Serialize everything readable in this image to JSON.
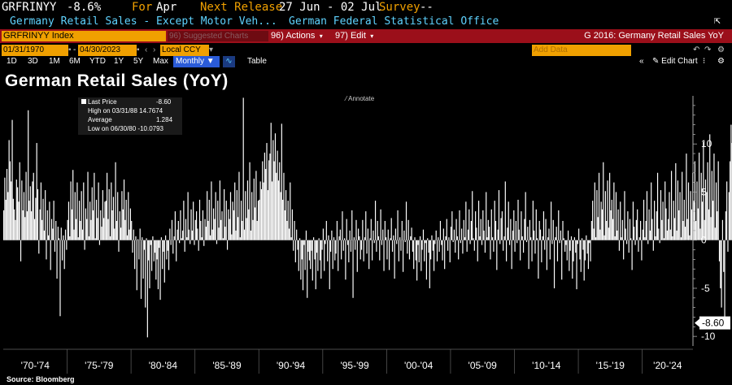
{
  "header": {
    "ticker": "GRFRINYY",
    "last_value": "-8.6%",
    "for_label": "For",
    "for_month": "Apr",
    "next_release_label": "Next Release",
    "next_release": "27 Jun - 02 Jul",
    "survey_label": "Survey",
    "survey_value": "--",
    "description": "Germany Retail Sales - Except Motor Veh...",
    "source_org": "German Federal Statistical Office"
  },
  "toolbar": {
    "security": "GRFRINYY Index",
    "suggested_charts": "96) Suggested Charts",
    "actions": "96) Actions",
    "edit": "97) Edit",
    "chart_name": "G 2016: Germany Retail Sales YoY"
  },
  "controls": {
    "start_date": "01/31/1970",
    "end_date": "04/30/2023",
    "currency": "Local CCY",
    "add_data_placeholder": "Add Data",
    "periods": [
      "1D",
      "3D",
      "1M",
      "6M",
      "YTD",
      "1Y",
      "5Y",
      "Max"
    ],
    "frequency": "Monthly",
    "table_label": "Table",
    "edit_chart": "Edit Chart"
  },
  "legend": {
    "last_price_label": "Last Price",
    "last_price": "-8.60",
    "high_label": "High on 03/31/88",
    "high": "14.7674",
    "average_label": "Average",
    "average": "1.284",
    "low_label": "Low on 06/30/80",
    "low": "-10.0793"
  },
  "annotate_label": "Annotate",
  "source": "Source: Bloomberg",
  "colors": {
    "bars": "#ffffff",
    "header_red": "#9b0f1a",
    "accent_orange": "#f0a000",
    "accent_cyan": "#5fd3ff"
  },
  "chart_data": {
    "type": "bar",
    "title": "German Retail Sales (YoY)",
    "ylim": [
      -11,
      15
    ],
    "yticks": [
      10,
      5,
      0,
      -5,
      -10
    ],
    "xtick_labels": [
      "'70-'74",
      "'75-'79",
      "'80-'84",
      "'85-'89",
      "'90-'94",
      "'95-'99",
      "'00-'04",
      "'05-'09",
      "'10-'14",
      "'15-'19",
      "'20-'24"
    ],
    "last_value_label": "-8.60",
    "x_start": "1970-01",
    "x_end": "2023-04",
    "frequency": "monthly",
    "values": [
      3.1,
      6.5,
      4.2,
      7.4,
      5.0,
      10.4,
      8.2,
      6.1,
      12.5,
      4.3,
      3.2,
      2.1,
      6.3,
      5.5,
      4.0,
      8.1,
      -2.2,
      6.2,
      3.1,
      5.0,
      2.4,
      7.1,
      3.0,
      13.5,
      4.1,
      5.6,
      3.0,
      6.1,
      7.0,
      2.2,
      4.4,
      10.1,
      5.3,
      -1.4,
      3.2,
      6.0,
      2.1,
      4.3,
      1.0,
      5.2,
      -2.0,
      3.1,
      0.5,
      4.0,
      -3.1,
      2.2,
      1.2,
      4.1,
      -1.2,
      2.0,
      -4.0,
      1.4,
      0.2,
      -7.9,
      1.3,
      -2.1,
      0.5,
      -3.0,
      1.1,
      -1.0,
      2.1,
      4.0,
      0.4,
      6.1,
      3.2,
      7.3,
      1.1,
      5.0,
      2.2,
      6.0,
      0.3,
      4.1,
      2.0,
      5.1,
      1.1,
      6.0,
      -1.0,
      3.3,
      2.2,
      7.1,
      0.4,
      4.0,
      2.1,
      5.5,
      3.1,
      7.0,
      0.2,
      4.2,
      2.3,
      6.0,
      -0.5,
      3.1,
      1.4,
      5.2,
      2.3,
      4.0,
      4.1,
      7.0,
      2.2,
      5.3,
      0.4,
      6.0,
      3.1,
      4.5,
      1.2,
      8.1,
      2.0,
      5.0,
      -1.2,
      3.0,
      1.3,
      5.1,
      3.2,
      6.3,
      2.1,
      4.2,
      0.5,
      5.0,
      1.1,
      3.3,
      2.0,
      -1.3,
      1.1,
      -3.0,
      0.4,
      -5.2,
      0.1,
      -2.0,
      1.2,
      -6.1,
      0.3,
      -4.0,
      -1.0,
      -7.0,
      0.2,
      -10.1,
      -2.1,
      -5.0,
      -0.5,
      -3.2,
      0.4,
      -2.2,
      -1.3,
      -4.1,
      -2.0,
      -5.1,
      -0.8,
      -6.2,
      0.3,
      -3.0,
      -1.2,
      -4.4,
      0.5,
      -2.0,
      -1.1,
      -3.1,
      1.2,
      -0.5,
      2.1,
      -1.4,
      0.4,
      3.0,
      -2.2,
      1.1,
      2.0,
      -0.3,
      3.1,
      0.2,
      1.0,
      4.1,
      -1.2,
      2.2,
      0.3,
      5.0,
      1.1,
      -0.4,
      3.2,
      1.0,
      4.0,
      -0.5,
      2.1,
      3.0,
      1.2,
      -1.1,
      4.2,
      2.0,
      0.3,
      3.1,
      -0.6,
      2.2,
      1.4,
      5.1,
      2.0,
      4.2,
      0.5,
      6.1,
      1.1,
      3.3,
      2.2,
      5.0,
      -0.4,
      4.1,
      1.3,
      6.2,
      2.1,
      3.0,
      0.2,
      5.3,
      1.4,
      4.1,
      -1.0,
      3.2,
      2.2,
      5.0,
      0.6,
      4.0,
      3.1,
      6.0,
      1.0,
      5.2,
      2.4,
      7.1,
      0.3,
      4.1,
      2.0,
      14.8,
      1.1,
      5.1,
      2.3,
      6.2,
      3.2,
      8.1,
      1.0,
      5.0,
      2.1,
      6.4,
      3.4,
      7.2,
      2.0,
      4.1,
      4.2,
      6.1,
      5.3,
      8.2,
      6.0,
      9.1,
      7.4,
      10.1,
      5.2,
      8.3,
      9.0,
      12.2,
      6.1,
      10.4,
      8.2,
      11.1,
      7.0,
      9.3,
      6.2,
      8.1,
      5.0,
      12.1,
      4.2,
      7.0,
      3.1,
      5.2,
      2.0,
      4.1,
      1.2,
      6.0,
      0.3,
      3.2,
      -1.1,
      2.0,
      -2.3,
      1.1,
      -1.0,
      -3.2,
      0.2,
      -4.1,
      -2.0,
      -5.2,
      -0.5,
      -3.1,
      1.0,
      -6.0,
      -1.2,
      -2.1,
      -3.0,
      -1.1,
      -4.2,
      0.3,
      -2.0,
      -5.1,
      -1.3,
      -3.2,
      0.2,
      -2.1,
      -4.0,
      -1.0,
      1.2,
      -3.2,
      -0.4,
      2.0,
      -2.2,
      0.5,
      -5.1,
      -1.2,
      1.0,
      -3.0,
      0.3,
      -2.1,
      -1.4,
      2.0,
      -3.2,
      0.4,
      1.1,
      -2.0,
      3.0,
      -1.1,
      0.2,
      -4.1,
      2.2,
      -0.5,
      -2.3,
      1.0,
      -1.2,
      3.1,
      -6.0,
      0.3,
      -1.0,
      2.1,
      -3.3,
      1.2,
      0.4,
      -2.0,
      -1.0,
      2.1,
      -2.2,
      0.3,
      3.0,
      -1.4,
      1.2,
      -3.0,
      0.2,
      2.2,
      -2.1,
      1.0,
      -0.3,
      4.1,
      -1.2,
      2.0,
      0.4,
      -2.1,
      3.2,
      -0.5,
      1.1,
      -3.2,
      2.0,
      0.3,
      -2.0,
      1.1,
      -3.1,
      0.2,
      2.3,
      -1.2,
      0.5,
      -4.0,
      1.2,
      -0.4,
      3.1,
      -2.2,
      0.3,
      -1.1,
      2.0,
      -3.3,
      1.0,
      -0.2,
      4.0,
      -1.4,
      2.1,
      -2.0,
      0.4,
      1.3,
      -1.2,
      -3.0,
      0.3,
      -2.1,
      -4.2,
      -0.5,
      -2.3,
      0.4,
      -3.2,
      -1.0,
      1.1,
      -2.2,
      -0.3,
      -4.1,
      0.2,
      -1.3,
      -5.0,
      -2.0,
      0.5,
      -1.1,
      -3.2,
      -0.4,
      1.0,
      -2.2,
      0.3,
      -1.2,
      2.0,
      -0.5,
      -2.1,
      1.2,
      -3.0,
      0.4,
      2.2,
      -1.1,
      0.3,
      -2.3,
      1.4,
      3.0,
      -0.2,
      1.1,
      -1.3,
      2.2,
      0.4,
      -2.0,
      3.1,
      -0.3,
      1.2,
      -1.4,
      2.1,
      0.3,
      4.0,
      -1.2,
      1.1,
      3.2,
      -0.4,
      2.0,
      5.1,
      0.2,
      -1.1,
      3.0,
      1.3,
      -2.2,
      4.1,
      0.4,
      2.2,
      -0.5,
      3.1,
      1.0,
      -1.3,
      5.0,
      0.3,
      2.1,
      1.4,
      -2.0,
      3.2,
      0.3,
      -1.2,
      4.1,
      2.0,
      -3.1,
      1.1,
      5.2,
      -0.4,
      2.3,
      3.0,
      -1.1,
      0.4,
      6.1,
      -2.2,
      1.3,
      4.0,
      -0.5,
      2.2,
      -3.0,
      1.0,
      3.1,
      -1.2,
      2.0,
      -0.3,
      4.2,
      1.1,
      -2.1,
      3.0,
      0.4,
      -1.3,
      2.2,
      5.0,
      -0.2,
      1.4,
      -3.0,
      2.1,
      0.3,
      -2.2,
      4.1,
      1.0,
      -1.4,
      3.2,
      0.2,
      -4.0,
      2.0,
      1.1,
      -2.3,
      0.4,
      3.0,
      -1.0,
      2.2,
      -3.1,
      0.3,
      1.2,
      -2.0,
      4.0,
      -0.4,
      2.1,
      -5.0,
      0.3,
      1.4,
      -2.2,
      3.1,
      -0.3,
      1.0,
      -4.1,
      2.0,
      0.2,
      -1.2,
      -0.5,
      -2.1,
      1.0,
      -3.2,
      -1.1,
      0.4,
      -4.0,
      -2.2,
      0.3,
      -1.3,
      -5.1,
      -0.4,
      1.2,
      -2.0,
      -3.3,
      0.2,
      -1.0,
      -4.2,
      -2.1,
      0.5,
      -1.4,
      -3.0,
      -0.3,
      -2.2,
      2.0,
      4.1,
      1.2,
      6.0,
      0.3,
      5.2,
      2.4,
      7.0,
      1.1,
      4.0,
      3.2,
      8.1,
      0.5,
      5.1,
      2.0,
      6.2,
      1.3,
      7.0,
      3.1,
      4.2,
      2.2,
      6.0,
      0.4,
      5.0,
      1.0,
      3.2,
      -1.1,
      4.0,
      0.3,
      2.1,
      -2.0,
      5.1,
      1.2,
      -0.4,
      3.0,
      -1.3,
      2.2,
      0.2,
      -3.1,
      4.0,
      1.4,
      -0.5,
      2.1,
      3.2,
      -1.2,
      0.3,
      2.0,
      -2.1,
      1.1,
      4.2,
      0.3,
      2.0,
      5.1,
      -0.4,
      3.2,
      1.0,
      6.0,
      2.2,
      -1.1,
      4.1,
      0.4,
      3.0,
      7.0,
      1.2,
      -0.3,
      5.2,
      2.1,
      4.0,
      0.2,
      6.1,
      3.3,
      1.0,
      2.2,
      5.0,
      1.1,
      7.2,
      0.4,
      4.1,
      2.3,
      8.0,
      1.0,
      6.2,
      3.1,
      5.0,
      0.3,
      7.1,
      2.0,
      4.2,
      1.4,
      9.0,
      2.2,
      6.0,
      0.5,
      5.1,
      3.2,
      7.0,
      4.1,
      8.2,
      2.0,
      6.1,
      3.3,
      9.1,
      1.2,
      7.0,
      4.0,
      10.2,
      2.1,
      6.3,
      5.0,
      8.1,
      3.2,
      11.0,
      2.4,
      7.2,
      4.1,
      9.0,
      1.3,
      6.0,
      3.0,
      8.2,
      -2.2,
      -5.0,
      -7.0,
      2.1,
      -3.3,
      -9.0,
      3.0,
      6.1,
      -1.2,
      5.0,
      8.2,
      12.0,
      10.1,
      13.6,
      -4.0,
      2.2,
      -2.0,
      6.0,
      9.0,
      -3.1,
      4.1,
      11.1,
      13.4,
      5.0,
      -3.0,
      2.1,
      -1.2,
      4.3,
      -7.9,
      -4.2,
      -8.8,
      -5.2,
      -3.0,
      -6.1,
      -7.1,
      -4.2,
      -5.1,
      -2.9,
      -6.3,
      -8.6
    ]
  }
}
